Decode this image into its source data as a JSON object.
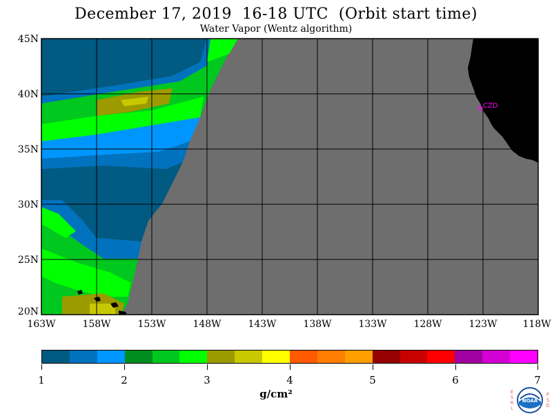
{
  "header": {
    "title": "December 17, 2019  16-18 UTC  (Orbit start time)",
    "subtitle": "Water Vapor (Wentz algorithm)"
  },
  "map": {
    "lat_labels": [
      "45N",
      "40N",
      "35N",
      "30N",
      "25N",
      "20N"
    ],
    "lon_labels": [
      "163W",
      "158W",
      "153W",
      "148W",
      "143W",
      "138W",
      "133W",
      "128W",
      "123W",
      "118W"
    ],
    "station_label": "CZD",
    "colors": {
      "no_data": "#6e6e6e",
      "land": "#000000",
      "station": "#ff00ff",
      "grid": "#000000"
    }
  },
  "legend": {
    "tick_labels": [
      "1",
      "2",
      "3",
      "4",
      "5",
      "6",
      "7"
    ],
    "units": "g/cm²",
    "colors": [
      "#005a82",
      "#0072be",
      "#0096ff",
      "#008c1e",
      "#00c81e",
      "#00ff00",
      "#9b9b00",
      "#c8c800",
      "#ffff00",
      "#ff5a00",
      "#ff7d00",
      "#ffa000",
      "#960000",
      "#c80000",
      "#ff0000",
      "#a000a0",
      "#d200d2",
      "#ff00ff"
    ]
  },
  "logo": {
    "left_letters": [
      "E",
      "S",
      "R",
      "L"
    ],
    "right_letters": [
      "P",
      "S",
      "D"
    ],
    "center_text": "NOAA"
  }
}
